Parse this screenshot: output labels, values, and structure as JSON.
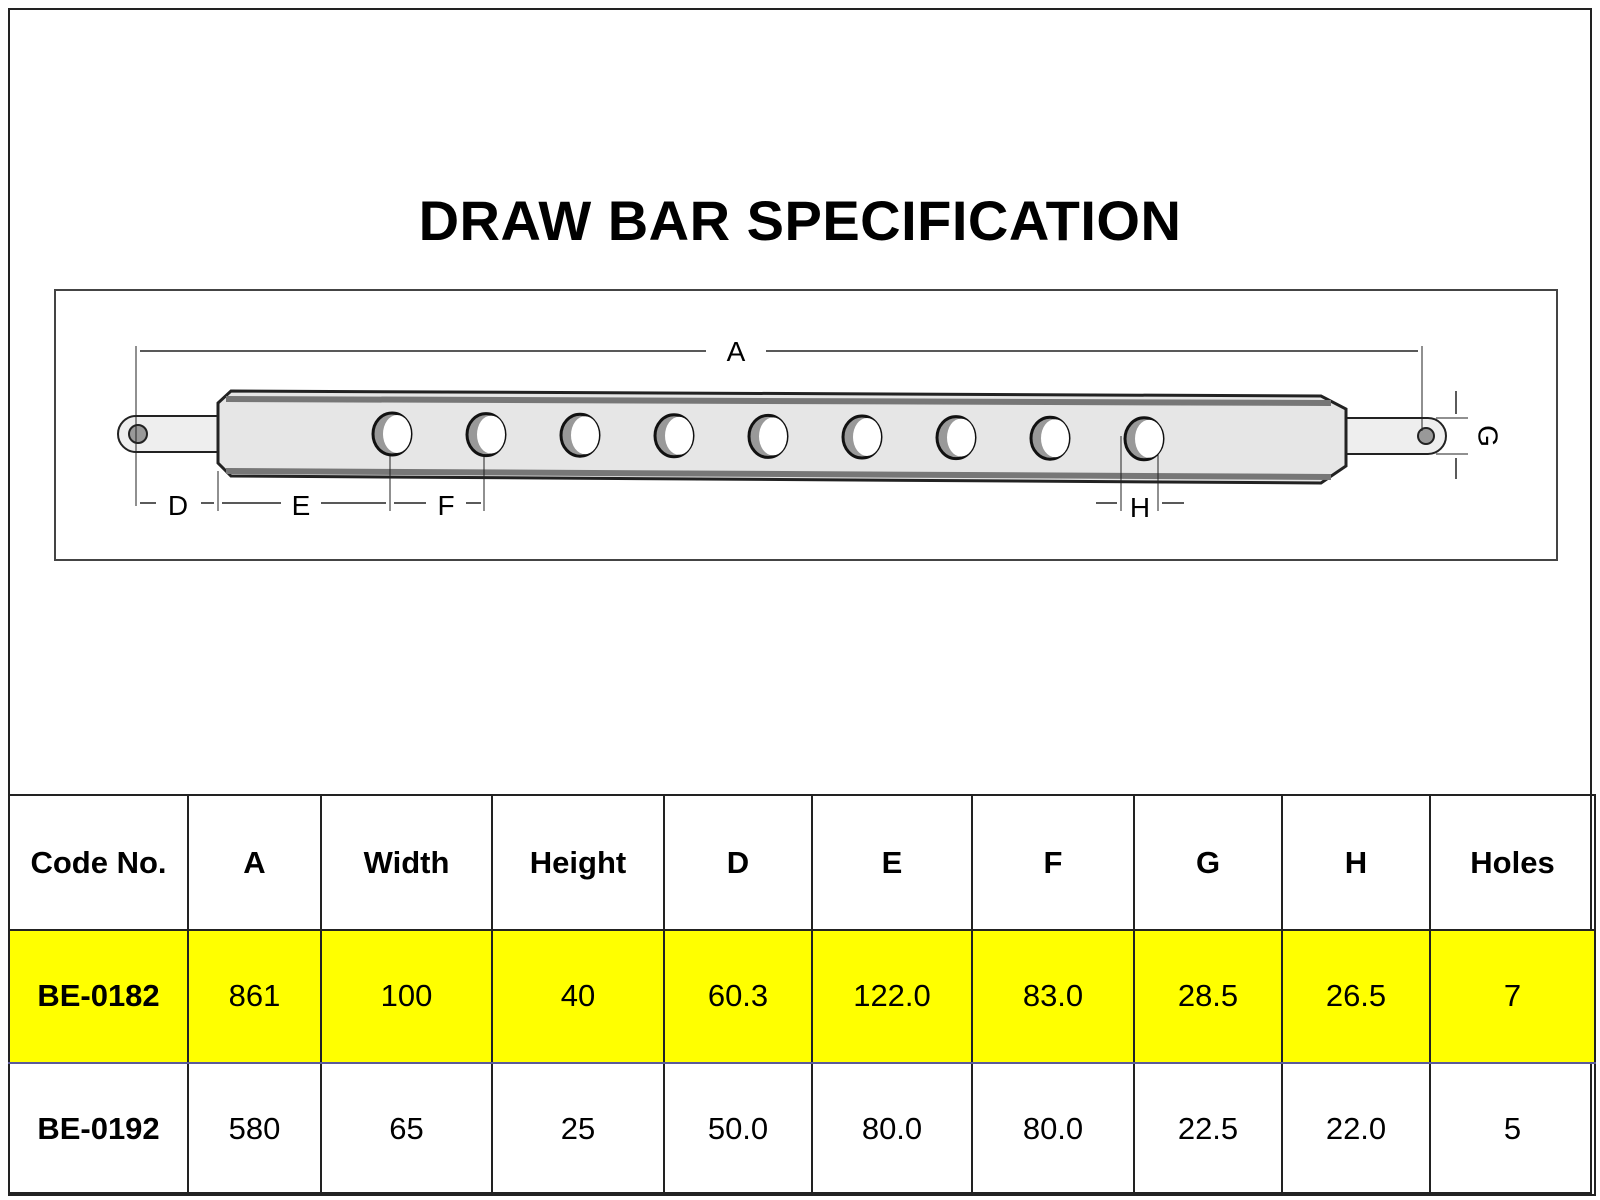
{
  "title": "DRAW BAR SPECIFICATION",
  "diagram": {
    "labels": {
      "A": "A",
      "D": "D",
      "E": "E",
      "F": "F",
      "G": "G",
      "H": "H"
    },
    "hole_count_drawn": 9
  },
  "table": {
    "headers": [
      "Code No.",
      "A",
      "Width",
      "Height",
      "D",
      "E",
      "F",
      "G",
      "H",
      "Holes"
    ],
    "rows": [
      {
        "highlighted": true,
        "cells": [
          "BE-0182",
          "861",
          "100",
          "40",
          "60.3",
          "122.0",
          "83.0",
          "28.5",
          "26.5",
          "7"
        ]
      },
      {
        "highlighted": false,
        "cells": [
          "BE-0192",
          "580",
          "65",
          "25",
          "50.0",
          "80.0",
          "80.0",
          "22.5",
          "22.0",
          "5"
        ]
      }
    ],
    "highlight_color": "#ffff00"
  }
}
